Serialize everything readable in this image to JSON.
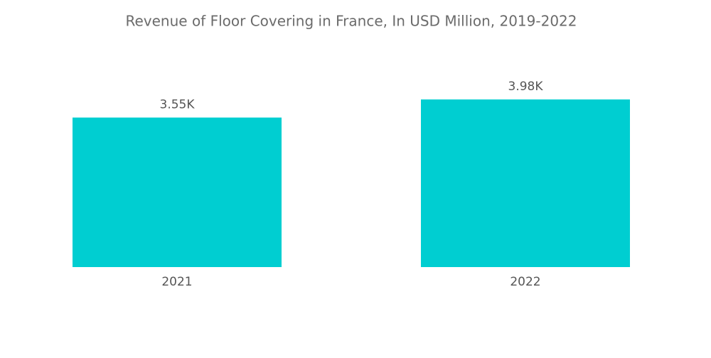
{
  "chart_data": {
    "type": "bar",
    "title": "Revenue of Floor Covering in France, In USD Million, 2019-2022",
    "categories": [
      "2021",
      "2022"
    ],
    "values": [
      3550,
      3980
    ],
    "value_labels": [
      "3.55K",
      "3.98K"
    ],
    "color": "#00ced1"
  }
}
